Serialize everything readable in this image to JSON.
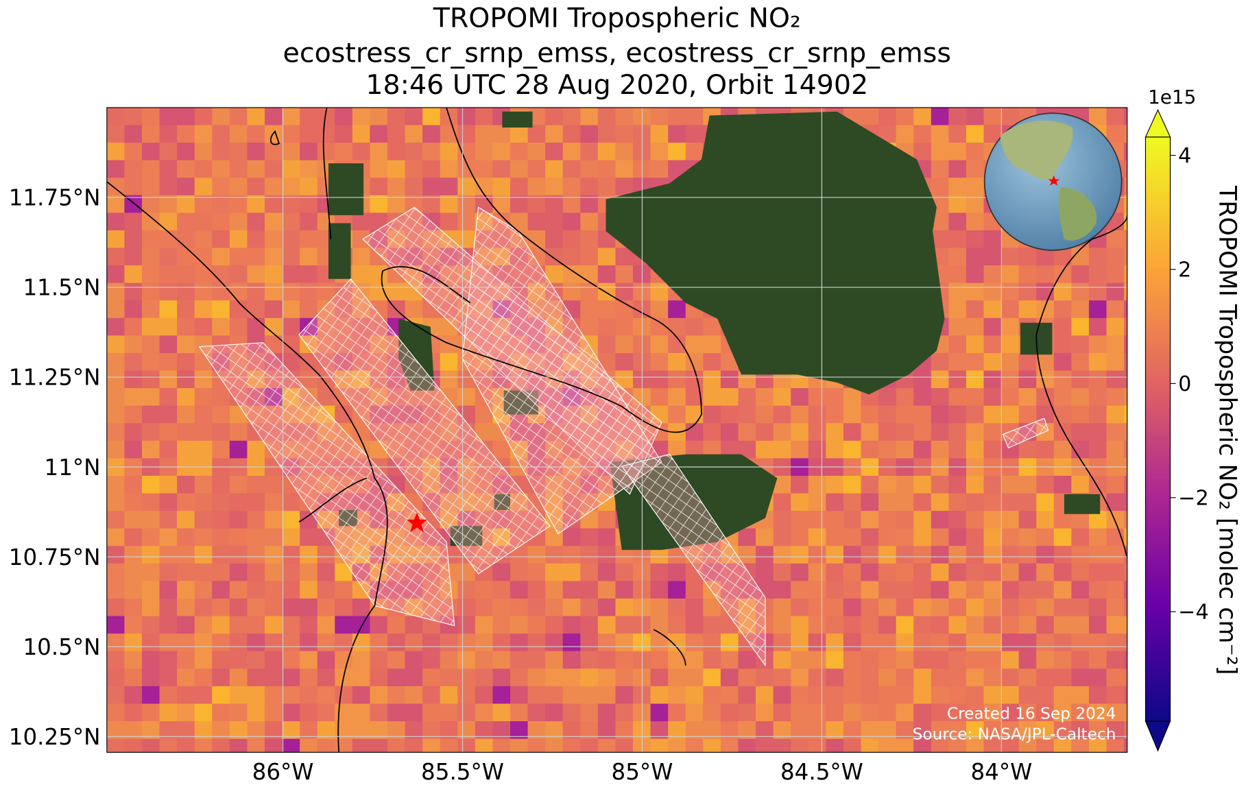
{
  "map": {
    "type": "map",
    "title": [
      "TROPOMI Tropospheric NO₂",
      "ecostress_cr_srnp_emss, ecostress_cr_srnp_emss",
      "18:46 UTC 28 Aug 2020, Orbit 14902"
    ],
    "xlim": [
      -86.49,
      -83.65
    ],
    "ylim": [
      10.206,
      12.0
    ],
    "xticks": [
      {
        "value": -86,
        "label": "86°W"
      },
      {
        "value": -85.5,
        "label": "85.5°W"
      },
      {
        "value": -85,
        "label": "85°W"
      },
      {
        "value": -84.5,
        "label": "84.5°W"
      },
      {
        "value": -84,
        "label": "84°W"
      }
    ],
    "yticks": [
      {
        "value": 10.25,
        "label": "10.25°N"
      },
      {
        "value": 10.5,
        "label": "10.5°N"
      },
      {
        "value": 10.75,
        "label": "10.75°N"
      },
      {
        "value": 11,
        "label": "11°N"
      },
      {
        "value": 11.25,
        "label": "11.25°N"
      },
      {
        "value": 11.5,
        "label": "11.5°N"
      },
      {
        "value": 11.75,
        "label": "11.75°N"
      }
    ],
    "grid": true,
    "colorbar": {
      "label": "TROPOMI Tropospheric NO₂ [molec cm⁻²]",
      "offset_label": "1e15",
      "lim": [
        -5.92,
        4.32
      ],
      "ticks": [
        {
          "value": -4,
          "label": "−4"
        },
        {
          "value": -2,
          "label": "−2"
        },
        0,
        2,
        4
      ]
    },
    "credits": [
      "Created 16 Sep 2024",
      "Source: NASA/JPL-Caltech"
    ]
  }
}
